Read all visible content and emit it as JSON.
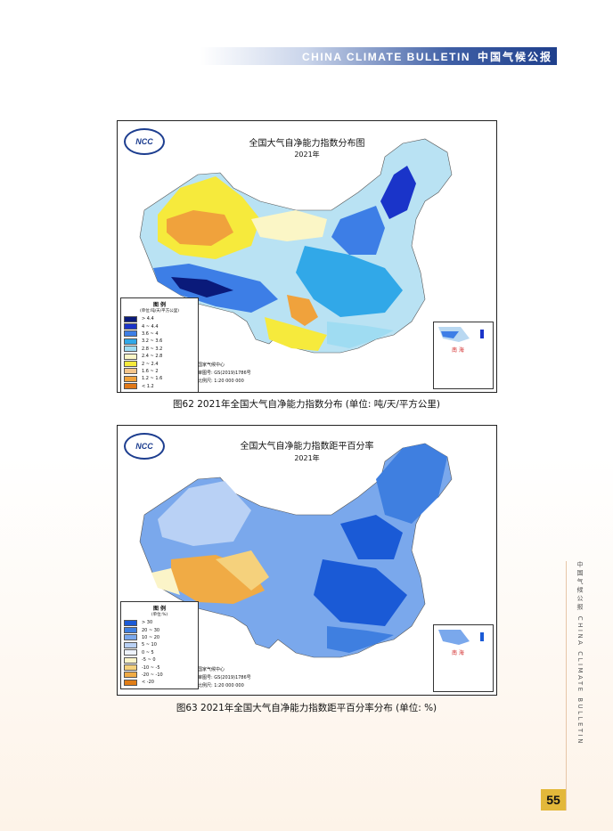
{
  "header": {
    "en": "CHINA CLIMATE BULLETIN",
    "cn": "中国气候公报"
  },
  "logo_text": "NCC",
  "map1": {
    "title": "全国大气自净能力指数分布图",
    "year": "2021年",
    "legend_title": "图 例",
    "legend_unit": "(单位:吨/天/平方公里)",
    "legend": [
      {
        "label": "> 4.4",
        "color": "#0a1a7a"
      },
      {
        "label": "4 ~ 4.4",
        "color": "#1a34c9"
      },
      {
        "label": "3.6 ~ 4",
        "color": "#3d7ee6"
      },
      {
        "label": "3.2 ~ 3.6",
        "color": "#31a8e8"
      },
      {
        "label": "2.8 ~ 3.2",
        "color": "#9fdcf2"
      },
      {
        "label": "2.4 ~ 2.8",
        "color": "#fbf6c6"
      },
      {
        "label": "2 ~ 2.4",
        "color": "#f6ea3c"
      },
      {
        "label": "1.6 ~ 2",
        "color": "#f5c58a"
      },
      {
        "label": "1.2 ~ 1.6",
        "color": "#f0a23c"
      },
      {
        "label": "< 1.2",
        "color": "#e07818"
      }
    ],
    "credit": [
      "国家气候中心",
      "审图号: GS(2019)1786号",
      "比例尺: 1:20 000 000"
    ],
    "inset_label": "南 海"
  },
  "map2": {
    "title": "全国大气自净能力指数距平百分率",
    "year": "2021年",
    "legend_title": "图 例",
    "legend_unit": "(单位:%)",
    "legend": [
      {
        "label": "> 30",
        "color": "#1a5ad6"
      },
      {
        "label": "20 ~ 30",
        "color": "#3f7fe0"
      },
      {
        "label": "10 ~ 20",
        "color": "#7aa8ec"
      },
      {
        "label": "5 ~ 10",
        "color": "#b9d1f5"
      },
      {
        "label": "0 ~ 5",
        "color": "#eef3fc"
      },
      {
        "label": "-5 ~ 0",
        "color": "#fbf4c8"
      },
      {
        "label": "-10 ~ -5",
        "color": "#f5d17c"
      },
      {
        "label": "-20 ~ -10",
        "color": "#f0ab45"
      },
      {
        "label": "< -20",
        "color": "#e07d16"
      }
    ],
    "credit": [
      "国家气候中心",
      "审图号: GS(2019)1786号",
      "比例尺: 1:20 000 000"
    ],
    "inset_label": "南 海"
  },
  "caption1": "图62  2021年全国大气自净能力指数分布 (单位: 吨/天/平方公里)",
  "caption2": "图63  2021年全国大气自净能力指数距平百分率分布 (单位: %)",
  "side_text": "中国气候公报  CHINA CLIMATE BULLETIN",
  "page_number": "55"
}
